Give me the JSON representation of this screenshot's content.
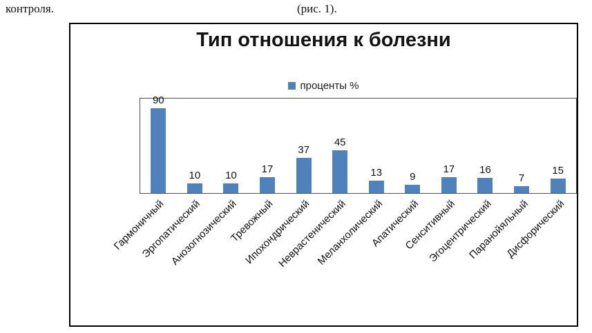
{
  "page": {
    "left_text": "контроля.",
    "caption": "(рис. 1)."
  },
  "chart_data": {
    "type": "bar",
    "title": "Тип отношения к болезни",
    "legend": [
      "проценты %"
    ],
    "legend_position": "top-center",
    "categories": [
      "Гармоничный",
      "Эргопатический",
      "Анозогнозический",
      "Тревожный",
      "Ипохондрический",
      "Неврастенический",
      "Меланхолический",
      "Апатический",
      "Сенситивный",
      "Эгоцентрический",
      "Паранойяльный",
      "Дисфорический"
    ],
    "values": [
      90,
      10,
      10,
      17,
      37,
      45,
      13,
      9,
      17,
      16,
      7,
      15
    ],
    "ylim": [
      0,
      100
    ],
    "grid": false,
    "data_labels": true,
    "bar_color": "#4f81bd"
  }
}
